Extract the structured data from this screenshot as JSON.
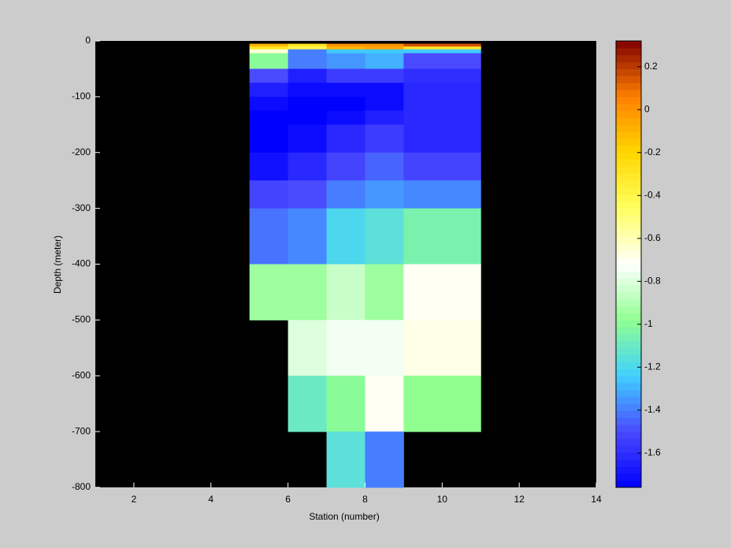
{
  "chart_data": {
    "type": "heatmap",
    "xlabel": "Station (number)",
    "ylabel": "Depth (meter)",
    "x_edges": [
      5,
      6,
      7,
      8,
      9,
      11
    ],
    "y_edges": [
      -5,
      -10,
      -15,
      -22,
      -50,
      -75,
      -100,
      -125,
      -150,
      -200,
      -250,
      -300,
      -400,
      -500,
      -600,
      -700,
      -800
    ],
    "values": [
      [
        -0.1,
        -0.3,
        0.0,
        0.0,
        0.15
      ],
      [
        -0.3,
        -0.4,
        -0.1,
        -0.05,
        -0.3
      ],
      [
        -0.65,
        -1.4,
        -1.25,
        -1.25,
        -1.25
      ],
      [
        -1.0,
        -1.4,
        -1.35,
        -1.3,
        -1.5
      ],
      [
        -1.5,
        -1.65,
        -1.55,
        -1.55,
        -1.6
      ],
      [
        -1.65,
        -1.72,
        -1.72,
        -1.72,
        -1.62
      ],
      [
        -1.72,
        -1.76,
        -1.76,
        -1.72,
        -1.62
      ],
      [
        -1.76,
        -1.76,
        -1.72,
        -1.65,
        -1.62
      ],
      [
        -1.76,
        -1.72,
        -1.62,
        -1.55,
        -1.62
      ],
      [
        -1.7,
        -1.62,
        -1.52,
        -1.45,
        -1.52
      ],
      [
        -1.52,
        -1.5,
        -1.4,
        -1.35,
        -1.38
      ],
      [
        -1.42,
        -1.38,
        -1.2,
        -1.15,
        -1.05
      ],
      [
        -0.95,
        -0.95,
        -0.85,
        -0.95,
        -0.7
      ],
      [
        null,
        -0.8,
        -0.75,
        -0.75,
        -0.68
      ],
      [
        null,
        -1.1,
        -1.0,
        -0.7,
        -0.98
      ],
      [
        null,
        null,
        -1.15,
        -1.4,
        null
      ]
    ],
    "xlim": [
      1,
      14
    ],
    "xticks": [
      2,
      4,
      6,
      8,
      10,
      12,
      14
    ],
    "ylim": [
      -800,
      0
    ],
    "yticks": [
      -800,
      -700,
      -600,
      -500,
      -400,
      -300,
      -200,
      -100,
      0
    ],
    "clim": [
      -1.76,
      0.32
    ],
    "cticks": [
      -1.6,
      -1.4,
      -1.2,
      -1,
      -0.8,
      -0.6,
      -0.4,
      -0.2,
      0,
      0.2
    ],
    "colormap": [
      "#0000ff",
      "#4a4aff",
      "#40d0ff",
      "#90ff90",
      "#ffffff",
      "#ffff60",
      "#ffd700",
      "#ff8000",
      "#800000"
    ],
    "background": "#000000"
  }
}
